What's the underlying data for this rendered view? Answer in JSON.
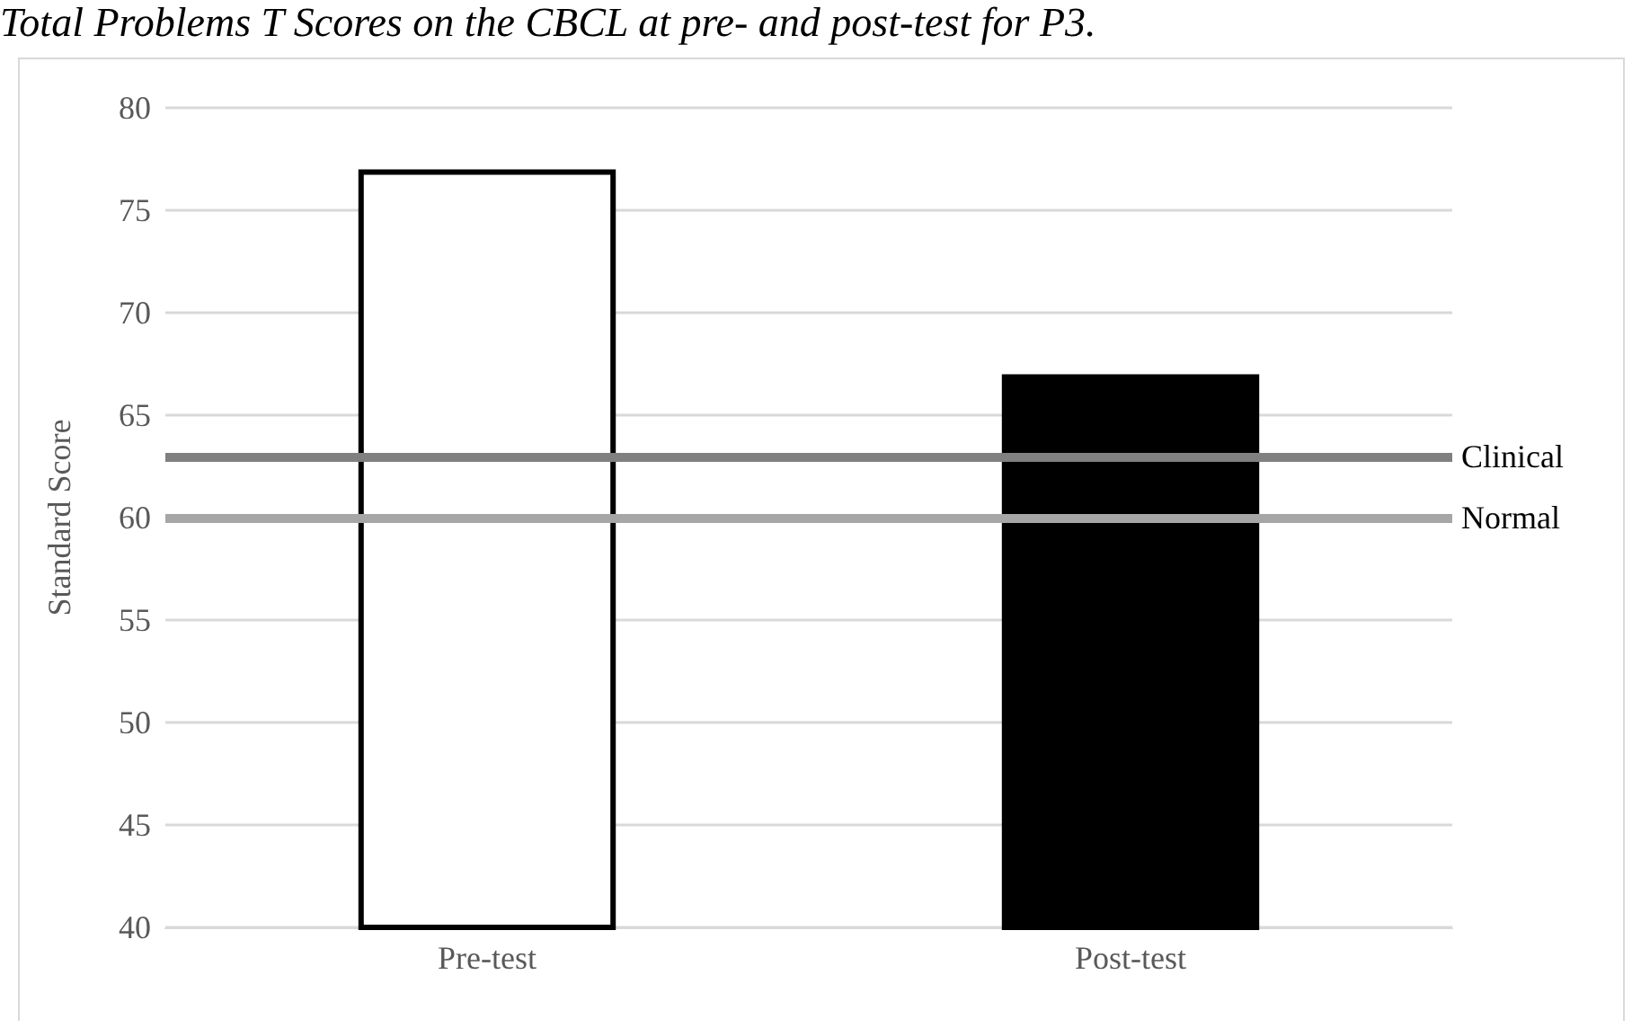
{
  "chart_data": {
    "type": "bar",
    "title": "Total Problems T Scores on the CBCL at pre- and post-test for P3.",
    "ylabel": "Standard Score",
    "categories": [
      "Pre-test",
      "Post-test"
    ],
    "values": [
      77,
      67
    ],
    "colors": [
      "#ffffff",
      "#000000"
    ],
    "ylim": [
      40,
      80
    ],
    "yticks": [
      40,
      45,
      50,
      55,
      60,
      65,
      70,
      75,
      80
    ],
    "grid": "y",
    "ref_lines": [
      {
        "axis": "y",
        "value": 63,
        "label": "Clinical",
        "color": "#808080"
      },
      {
        "axis": "y",
        "value": 60,
        "label": "Normal",
        "color": "#a6a6a6"
      }
    ]
  }
}
